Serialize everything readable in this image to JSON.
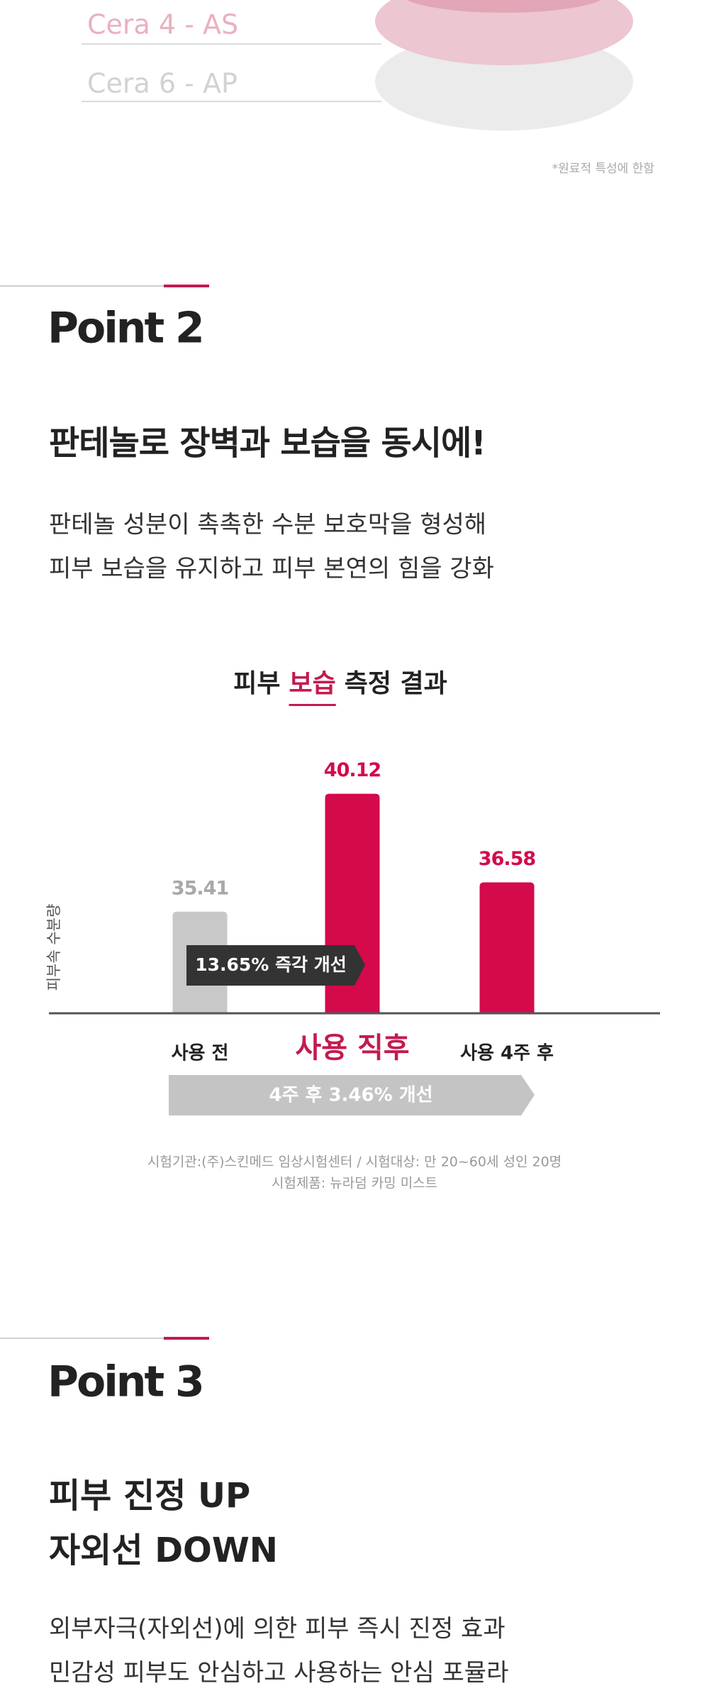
{
  "ingredients": {
    "labels": [
      "Cera 4 - AS",
      "Cera 6 - AP"
    ],
    "note": "*원료적 특성에 한함"
  },
  "point2": {
    "label": "Point 2",
    "heading": "판테놀로 장벽과 보습을 동시에!",
    "body": [
      "판테놀 성분이 촉촉한 수분 보호막을 형성해",
      "피부 보습을 유지하고 피부 본연의 힘을 강화"
    ]
  },
  "chart_data": {
    "type": "bar",
    "title_parts": [
      "피부",
      "보습",
      "측정 결과"
    ],
    "y_axis_label": "피부속 수분량",
    "categories": [
      "사용 전",
      "사용 직후",
      "사용 4주 후"
    ],
    "values": [
      35.41,
      40.12,
      36.58
    ],
    "colors": [
      "#c8c8c8",
      "#d40a4b",
      "#d40a4b"
    ],
    "ylim": [
      31.35,
      41.5
    ],
    "annotations": [
      "13.65% 즉각 개선",
      "4주 후 3.46% 개선"
    ],
    "footnotes": [
      "시험기관:(주)스킨메드 임상시험센터 / 시험대상: 만 20~60세 성인 20명",
      "시험제품: 뉴라덤 카밍 미스트"
    ]
  },
  "point3": {
    "label": "Point 3",
    "heading": [
      "피부 진정 UP",
      "자외선 DOWN"
    ],
    "body": [
      "외부자극(자외선)에 의한 피부 즉시 진정 효과",
      "민감성 피부도 안심하고 사용하는 안심 포뮬라"
    ]
  }
}
